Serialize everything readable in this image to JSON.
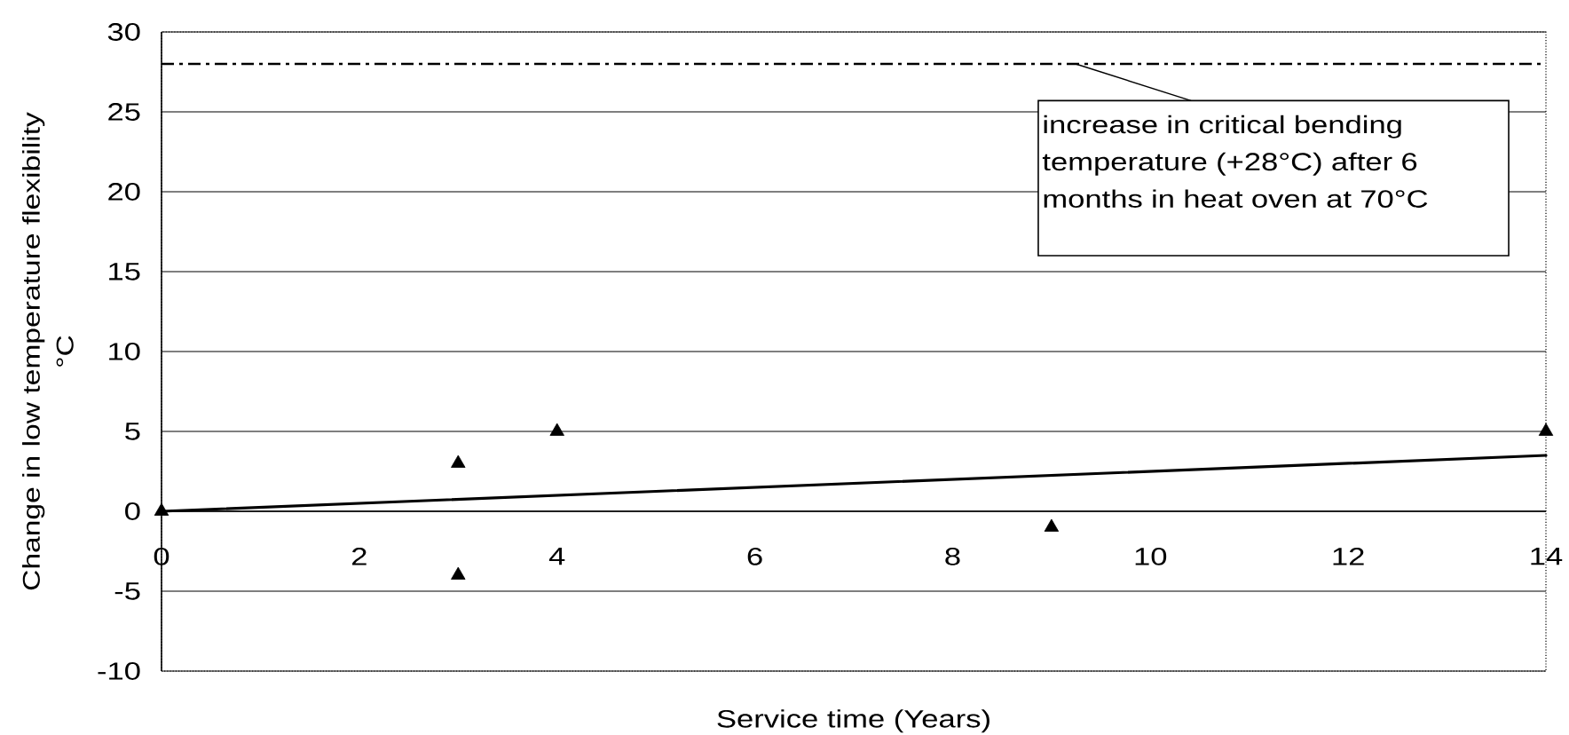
{
  "chart_data": {
    "type": "scatter",
    "xlabel": "Service time (Years)",
    "ylabel": "Change in low temperature flexibility °C",
    "xlim": [
      0,
      14
    ],
    "ylim": [
      -10,
      30
    ],
    "xticks": [
      0,
      2,
      4,
      6,
      8,
      10,
      12,
      14
    ],
    "yticks": [
      -10,
      -5,
      0,
      5,
      10,
      15,
      20,
      25,
      30
    ],
    "grid": "y",
    "series": [
      {
        "color": "#000000",
        "x": [
          0,
          3,
          3,
          4,
          9,
          14
        ],
        "values": [
          0,
          3,
          -4,
          5,
          -1,
          5
        ],
        "marker": "triangle"
      },
      {
        "type": "line",
        "color": "#000000",
        "x": [
          0,
          14
        ],
        "values": [
          0,
          3.5
        ],
        "line_style": "solid"
      }
    ],
    "ref_lines": [
      {
        "axis": "y",
        "value": 28,
        "label": "increase in critical bending temperature (+28°C) after 6 months in heat oven at 70°C",
        "color": "#000000",
        "line_style": "dashdot"
      }
    ]
  }
}
